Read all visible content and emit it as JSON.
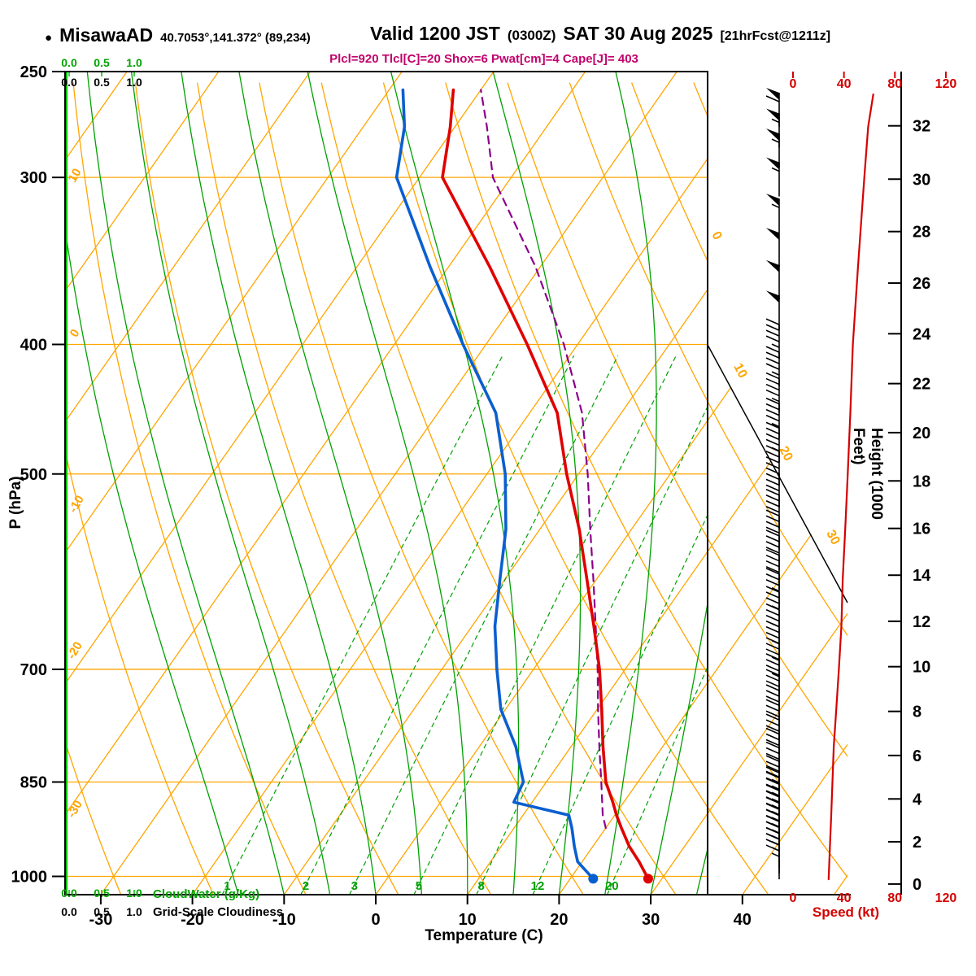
{
  "header": {
    "station_marker": "●",
    "station_name": "MisawaAD",
    "station_coords": "40.7053°,141.372° (89,234)",
    "valid_prefix": "Valid 1200 JST",
    "valid_zulu": "(0300Z)",
    "valid_date": "SAT 30 Aug 2025",
    "forecast_ref": "[21hrFcst@1211z]",
    "params_line": "Plcl=920 Tlcl[C]=20 Shox=6 Pwat[cm]=4 Cape[J]= 403"
  },
  "axis_titles": {
    "pressure": "P (hPa)",
    "temperature": "Temperature (C)",
    "height": "Height (1000 Feet)",
    "speed": "Speed (kt)",
    "cloudwater": "CloudWater (g/Kg)",
    "cloudiness": "Grid-Scale Cloudiness"
  },
  "chart_data": {
    "type": "line",
    "subtype": "skew-t-log-p-sounding",
    "pressure_axis_range_hpa": [
      250,
      1032
    ],
    "pressure_ticks_hpa": [
      250,
      300,
      400,
      500,
      700,
      850,
      1000
    ],
    "temperature_ticks_c": [
      -30,
      -20,
      -10,
      0,
      10,
      20,
      30,
      40
    ],
    "height_ticks_kft": [
      0,
      2,
      4,
      6,
      8,
      10,
      12,
      14,
      16,
      18,
      20,
      22,
      24,
      26,
      28,
      30,
      32
    ],
    "speed_ticks_kt": [
      0,
      40,
      80,
      120
    ],
    "cloud_scale_ticks": [
      "0.0",
      "0.5",
      "1.0"
    ],
    "mixing_ratio_lines_gkg": [
      1,
      2,
      3,
      5,
      8,
      12,
      20
    ],
    "isotherms_c": {
      "min": -90,
      "max": 50,
      "step": 10
    },
    "dry_adiabats_c": {
      "min": -30,
      "max": 110,
      "step": 10
    },
    "moist_adiabats_c": [
      -15,
      -10,
      -5,
      0,
      5,
      10,
      15,
      20,
      25,
      30,
      35
    ],
    "dry_adiabat_labels_left": [
      "10",
      "0",
      "-10",
      "-20",
      "-30"
    ],
    "isotherm_labels_right": [
      "0",
      "10",
      "20",
      "30"
    ],
    "sounding": [
      {
        "p": 1004,
        "t": 28.5,
        "td": 22.5
      },
      {
        "p": 975,
        "t": 26.2,
        "td": 19.5
      },
      {
        "p": 950,
        "t": 24.0,
        "td": 18.0
      },
      {
        "p": 920,
        "t": 21.7,
        "td": 16.3
      },
      {
        "p": 900,
        "t": 20.2,
        "td": 15.0
      },
      {
        "p": 880,
        "t": 18.8,
        "td": 8.0
      },
      {
        "p": 850,
        "t": 16.5,
        "td": 7.5
      },
      {
        "p": 800,
        "t": 13.5,
        "td": 4.0
      },
      {
        "p": 750,
        "t": 10.5,
        "td": -0.5
      },
      {
        "p": 700,
        "t": 7.2,
        "td": -4.0
      },
      {
        "p": 650,
        "t": 3.3,
        "td": -7.5
      },
      {
        "p": 600,
        "t": -1.0,
        "td": -10.5
      },
      {
        "p": 550,
        "t": -5.7,
        "td": -13.7
      },
      {
        "p": 500,
        "t": -11.3,
        "td": -18.0
      },
      {
        "p": 450,
        "t": -17.0,
        "td": -23.7
      },
      {
        "p": 400,
        "t": -25.5,
        "td": -32.5
      },
      {
        "p": 350,
        "t": -35.5,
        "td": -42.0
      },
      {
        "p": 300,
        "t": -47.5,
        "td": -52.5
      },
      {
        "p": 275,
        "t": -50.5,
        "td": -55.5
      },
      {
        "p": 258,
        "t": -53.0,
        "td": -58.5
      }
    ],
    "parcel": [
      {
        "p": 920,
        "t": 20.0
      },
      {
        "p": 900,
        "t": 18.7
      },
      {
        "p": 850,
        "t": 16.0
      },
      {
        "p": 800,
        "t": 13.1
      },
      {
        "p": 750,
        "t": 10.1
      },
      {
        "p": 700,
        "t": 7.0
      },
      {
        "p": 650,
        "t": 3.5
      },
      {
        "p": 600,
        "t": -0.3
      },
      {
        "p": 550,
        "t": -4.5
      },
      {
        "p": 500,
        "t": -9.0
      },
      {
        "p": 450,
        "t": -14.3
      },
      {
        "p": 400,
        "t": -21.5
      },
      {
        "p": 350,
        "t": -30.5
      },
      {
        "p": 300,
        "t": -42.0
      },
      {
        "p": 275,
        "t": -46.5
      },
      {
        "p": 258,
        "t": -50.0
      }
    ],
    "winds": [
      {
        "p": 1005,
        "kt": 25
      },
      {
        "p": 995,
        "kt": 25
      },
      {
        "p": 985,
        "kt": 25
      },
      {
        "p": 975,
        "kt": 25
      },
      {
        "p": 965,
        "kt": 25
      },
      {
        "p": 955,
        "kt": 25
      },
      {
        "p": 945,
        "kt": 25
      },
      {
        "p": 935,
        "kt": 25
      },
      {
        "p": 925,
        "kt": 25
      },
      {
        "p": 915,
        "kt": 25
      },
      {
        "p": 905,
        "kt": 27
      },
      {
        "p": 895,
        "kt": 27
      },
      {
        "p": 885,
        "kt": 27
      },
      {
        "p": 870,
        "kt": 28
      },
      {
        "p": 850,
        "kt": 28
      },
      {
        "p": 830,
        "kt": 30
      },
      {
        "p": 810,
        "kt": 30
      },
      {
        "p": 790,
        "kt": 30
      },
      {
        "p": 770,
        "kt": 32
      },
      {
        "p": 750,
        "kt": 32
      },
      {
        "p": 730,
        "kt": 33
      },
      {
        "p": 710,
        "kt": 33
      },
      {
        "p": 690,
        "kt": 35
      },
      {
        "p": 670,
        "kt": 35
      },
      {
        "p": 650,
        "kt": 37
      },
      {
        "p": 630,
        "kt": 37
      },
      {
        "p": 610,
        "kt": 38
      },
      {
        "p": 590,
        "kt": 38
      },
      {
        "p": 570,
        "kt": 40
      },
      {
        "p": 550,
        "kt": 40
      },
      {
        "p": 530,
        "kt": 40
      },
      {
        "p": 510,
        "kt": 42
      },
      {
        "p": 490,
        "kt": 43
      },
      {
        "p": 470,
        "kt": 44
      },
      {
        "p": 450,
        "kt": 45
      },
      {
        "p": 430,
        "kt": 45
      },
      {
        "p": 410,
        "kt": 47
      },
      {
        "p": 390,
        "kt": 48
      },
      {
        "p": 370,
        "kt": 50
      },
      {
        "p": 350,
        "kt": 52
      },
      {
        "p": 330,
        "kt": 53
      },
      {
        "p": 310,
        "kt": 55
      },
      {
        "p": 295,
        "kt": 55
      },
      {
        "p": 285,
        "kt": 57
      },
      {
        "p": 275,
        "kt": 58
      }
    ],
    "speed_profile": [
      {
        "p": 1005,
        "kt": 28
      },
      {
        "p": 950,
        "kt": 29
      },
      {
        "p": 900,
        "kt": 30
      },
      {
        "p": 850,
        "kt": 31
      },
      {
        "p": 800,
        "kt": 32
      },
      {
        "p": 750,
        "kt": 34
      },
      {
        "p": 700,
        "kt": 36
      },
      {
        "p": 650,
        "kt": 38
      },
      {
        "p": 600,
        "kt": 39
      },
      {
        "p": 550,
        "kt": 41
      },
      {
        "p": 500,
        "kt": 43
      },
      {
        "p": 450,
        "kt": 45
      },
      {
        "p": 400,
        "kt": 47
      },
      {
        "p": 350,
        "kt": 51
      },
      {
        "p": 300,
        "kt": 56
      },
      {
        "p": 275,
        "kt": 59
      },
      {
        "p": 260,
        "kt": 63
      }
    ],
    "colors": {
      "grid_orange": "#FFA500",
      "grid_green": "#00A000",
      "cloudwater_green": "#00C000",
      "temperature_red": "#E00000",
      "dewpoint_blue": "#0A5FD0",
      "parcel_purple": "#8B008B",
      "speed_red": "#D40000",
      "params_magenta": "#C2006B",
      "barb_black": "#000000"
    }
  }
}
